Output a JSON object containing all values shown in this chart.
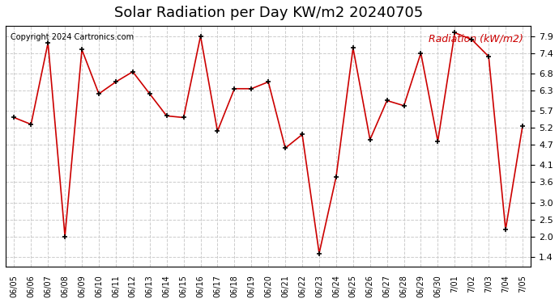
{
  "title": "Solar Radiation per Day KW/m2 20240705",
  "copyright": "Copyright 2024 Cartronics.com",
  "legend_label": "Radiation (kW/m2)",
  "dates": [
    "06/05",
    "06/06",
    "06/07",
    "06/08",
    "06/09",
    "06/10",
    "06/11",
    "06/12",
    "06/13",
    "06/14",
    "06/15",
    "06/16",
    "06/17",
    "06/18",
    "06/19",
    "06/20",
    "06/21",
    "06/22",
    "06/23",
    "06/24",
    "06/25",
    "06/26",
    "06/27",
    "06/28",
    "06/29",
    "06/30",
    "7/01",
    "7/02",
    "7/03",
    "7/04",
    "7/05"
  ],
  "values": [
    5.5,
    5.3,
    7.7,
    2.0,
    7.5,
    6.2,
    6.55,
    6.85,
    6.2,
    5.55,
    5.5,
    7.9,
    5.1,
    6.35,
    6.35,
    6.55,
    4.6,
    5.0,
    1.5,
    3.75,
    7.55,
    4.85,
    6.0,
    5.85,
    7.4,
    4.8,
    8.0,
    7.8,
    7.3,
    2.2,
    5.25
  ],
  "line_color": "#cc0000",
  "marker_color": "#000000",
  "bg_color": "#ffffff",
  "grid_color": "#cccccc",
  "title_color": "#000000",
  "copyright_color": "#000000",
  "legend_color": "#cc0000",
  "ylim": [
    1.1,
    8.2
  ],
  "yticks": [
    1.4,
    2.0,
    2.5,
    3.0,
    3.6,
    4.1,
    4.7,
    5.2,
    5.7,
    6.3,
    6.8,
    7.4,
    7.9
  ]
}
